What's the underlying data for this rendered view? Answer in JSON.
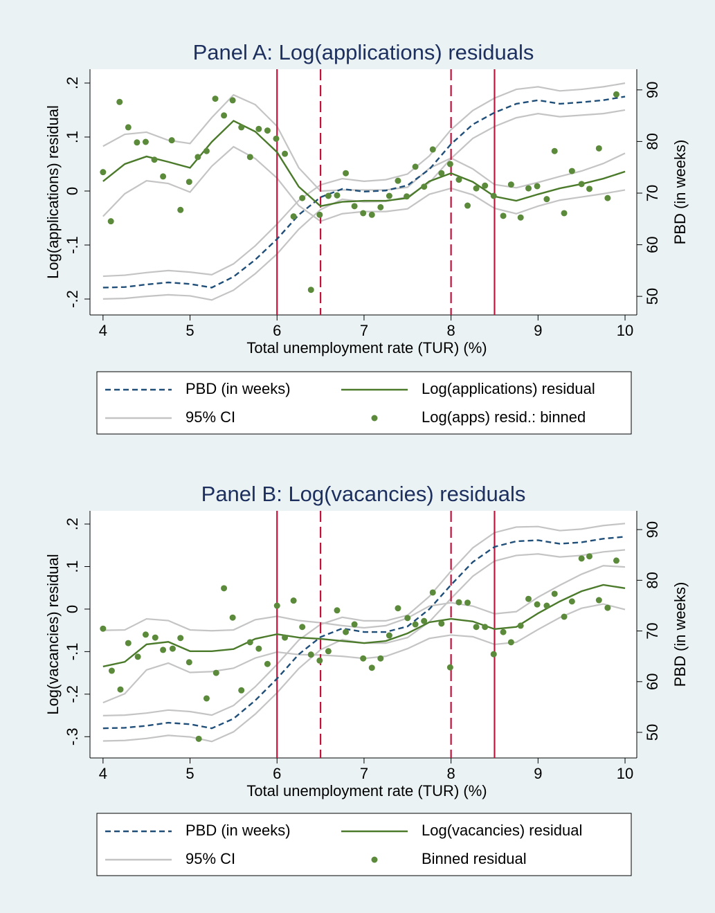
{
  "chart_data": [
    {
      "type": "line",
      "title": "Panel A: Log(applications) residuals",
      "xlabel": "Total unemployment rate (TUR) (%)",
      "ylabel": "Log(applications) residual",
      "y2label": "PBD (in weeks)",
      "xlim": [
        3.85,
        10.135
      ],
      "xticks": [
        4,
        5,
        6,
        7,
        8,
        9,
        10
      ],
      "ylim": [
        -0.2295,
        0.2256
      ],
      "yticks": [
        {
          "value": -0.2,
          "label": "-.2"
        },
        {
          "value": -0.1,
          "label": "-.1"
        },
        0,
        {
          "value": 0.1,
          "label": ".1"
        },
        {
          "value": 0.2,
          "label": ".2"
        }
      ],
      "y2lim": [
        46.4,
        94.0
      ],
      "y2ticks": [
        50,
        60,
        70,
        80,
        90
      ],
      "vline_color": "#c0143c",
      "vlines": [
        {
          "x": 6,
          "style": "solid"
        },
        {
          "x": 6.5,
          "style": "dash"
        },
        {
          "x": 8,
          "style": "dash"
        },
        {
          "x": 8.5,
          "style": "solid"
        }
      ],
      "x": [
        4,
        4.25,
        4.5,
        4.75,
        5,
        5.25,
        5.5,
        5.75,
        6,
        6.25,
        6.5,
        6.75,
        7,
        7.25,
        7.5,
        7.75,
        8,
        8.25,
        8.5,
        8.75,
        9,
        9.25,
        9.5,
        9.75,
        10
      ],
      "series": [
        {
          "name": "PBD (in weeks)",
          "color": "#1f4e79",
          "dash": true,
          "axis": "y2",
          "values": [
            51.7,
            51.8,
            52.3,
            52.7,
            52.4,
            51.7,
            53.8,
            57.1,
            61.1,
            65.8,
            69.2,
            70.8,
            70.3,
            70.5,
            71.5,
            74.6,
            79.5,
            83.3,
            85.6,
            87.3,
            88.0,
            87.3,
            87.6,
            88.0,
            88.7
          ]
        },
        {
          "name": "Log(applications) residual",
          "color": "#4a7a2a",
          "values": [
            0.018,
            0.05,
            0.064,
            0.054,
            0.043,
            0.091,
            0.13,
            0.11,
            0.072,
            0.008,
            -0.028,
            -0.02,
            -0.018,
            -0.018,
            -0.013,
            0.018,
            0.033,
            0.017,
            -0.01,
            -0.018,
            -0.006,
            0.005,
            0.013,
            0.023,
            0.036
          ]
        },
        {
          "name": "95% CI",
          "color": "#c4c4c4",
          "bands": [
            {
              "axis": "y2",
              "lower": [
                49.5,
                49.6,
                50.0,
                50.3,
                50.1,
                49.3,
                51.2,
                54.4,
                58.2,
                63.0,
                66.8,
                68.8,
                68.3,
                68.4,
                69.3,
                72.0,
                76.7,
                80.6,
                82.9,
                84.6,
                85.4,
                84.8,
                85.1,
                85.4,
                86.1
              ],
              "upper": [
                53.9,
                54.1,
                54.6,
                55.0,
                54.7,
                54.2,
                56.3,
                59.8,
                64.0,
                68.6,
                71.6,
                72.8,
                72.3,
                72.6,
                73.7,
                77.2,
                82.3,
                86.0,
                88.4,
                90.1,
                90.6,
                89.8,
                90.1,
                90.6,
                91.3
              ]
            },
            {
              "lower": [
                -0.047,
                -0.005,
                0.019,
                0.014,
                -0.002,
                0.046,
                0.082,
                0.06,
                0.024,
                -0.027,
                -0.056,
                -0.042,
                -0.038,
                -0.038,
                -0.033,
                -0.006,
                0.005,
                -0.007,
                -0.032,
                -0.042,
                -0.028,
                -0.017,
                -0.011,
                -0.005,
                0.002
              ],
              "upper": [
                0.083,
                0.105,
                0.109,
                0.094,
                0.088,
                0.136,
                0.178,
                0.16,
                0.12,
                0.043,
                0.0,
                0.002,
                0.002,
                0.002,
                0.007,
                0.042,
                0.061,
                0.041,
                0.012,
                0.006,
                0.016,
                0.027,
                0.037,
                0.051,
                0.07
              ]
            }
          ]
        },
        {
          "name": "Log(apps) resid.: binned",
          "color": "#5a8a3a",
          "marker": "dot",
          "x": [
            4.0,
            4.09,
            4.19,
            4.29,
            4.39,
            4.49,
            4.59,
            4.69,
            4.79,
            4.89,
            4.99,
            5.09,
            5.19,
            5.29,
            5.39,
            5.49,
            5.59,
            5.69,
            5.79,
            5.89,
            5.99,
            6.09,
            6.19,
            6.29,
            6.39,
            6.49,
            6.59,
            6.69,
            6.79,
            6.89,
            6.99,
            7.09,
            7.19,
            7.29,
            7.39,
            7.49,
            7.59,
            7.69,
            7.79,
            7.89,
            7.99,
            8.09,
            8.19,
            8.29,
            8.39,
            8.49,
            8.6,
            8.69,
            8.8,
            8.89,
            8.99,
            9.1,
            9.19,
            9.3,
            9.39,
            9.5,
            9.59,
            9.7,
            9.8,
            9.9
          ],
          "values": [
            0.035,
            -0.056,
            0.165,
            0.118,
            0.09,
            0.091,
            0.058,
            0.027,
            0.094,
            -0.035,
            0.017,
            0.063,
            0.074,
            0.171,
            0.14,
            0.168,
            0.118,
            0.063,
            0.115,
            0.112,
            0.097,
            0.069,
            -0.047,
            -0.013,
            -0.183,
            -0.044,
            -0.009,
            -0.008,
            0.033,
            -0.028,
            -0.041,
            -0.044,
            -0.03,
            -0.009,
            0.019,
            -0.01,
            0.045,
            0.008,
            0.077,
            0.033,
            0.05,
            0.021,
            -0.027,
            0.005,
            0.01,
            -0.009,
            -0.046,
            0.012,
            -0.049,
            0.005,
            0.009,
            -0.015,
            0.074,
            -0.041,
            0.037,
            0.013,
            0.004,
            0.079,
            -0.013,
            0.179
          ]
        }
      ]
    },
    {
      "type": "line",
      "title": "Panel B: Log(vacancies) residuals",
      "xlabel": "Total unemployment rate (TUR) (%)",
      "ylabel": "Log(vacancies) residual",
      "y2label": "PBD (in weeks)",
      "xlim": [
        3.85,
        10.135
      ],
      "xticks": [
        4,
        5,
        6,
        7,
        8,
        9,
        10
      ],
      "ylim": [
        -0.35,
        0.231
      ],
      "yticks": [
        {
          "value": -0.3,
          "label": "-.3"
        },
        {
          "value": -0.2,
          "label": "-.2"
        },
        {
          "value": -0.1,
          "label": "-.1"
        },
        0,
        {
          "value": 0.1,
          "label": ".1"
        },
        {
          "value": 0.2,
          "label": ".2"
        }
      ],
      "y2lim": [
        44.95,
        93.7
      ],
      "y2ticks": [
        50,
        60,
        70,
        80,
        90
      ],
      "vline_color": "#c0143c",
      "vlines": [
        {
          "x": 6,
          "style": "solid"
        },
        {
          "x": 6.5,
          "style": "dash"
        },
        {
          "x": 8,
          "style": "dash"
        },
        {
          "x": 8.5,
          "style": "solid"
        }
      ],
      "x": [
        4,
        4.25,
        4.5,
        4.75,
        5,
        5.25,
        5.5,
        5.75,
        6,
        6.25,
        6.5,
        6.75,
        7,
        7.25,
        7.5,
        7.75,
        8,
        8.25,
        8.5,
        8.75,
        9,
        9.25,
        9.5,
        9.75,
        10
      ],
      "series": [
        {
          "name": "PBD (in weeks)",
          "color": "#1f4e79",
          "dash": true,
          "axis": "y2",
          "values": [
            50.8,
            50.9,
            51.3,
            51.9,
            51.6,
            50.8,
            52.7,
            56.3,
            60.6,
            65.4,
            68.8,
            70.5,
            69.8,
            69.8,
            70.9,
            74.3,
            79.1,
            83.6,
            86.6,
            87.7,
            87.9,
            87.2,
            87.5,
            88.2,
            88.6
          ]
        },
        {
          "name": "Log(vacancies) residual",
          "color": "#4a7a2a",
          "values": [
            -0.135,
            -0.124,
            -0.083,
            -0.077,
            -0.099,
            -0.099,
            -0.094,
            -0.07,
            -0.059,
            -0.067,
            -0.07,
            -0.075,
            -0.08,
            -0.075,
            -0.057,
            -0.031,
            -0.023,
            -0.029,
            -0.047,
            -0.042,
            -0.01,
            0.018,
            0.042,
            0.057,
            0.049
          ]
        },
        {
          "name": "95% CI",
          "color": "#c4c4c4",
          "bands": [
            {
              "axis": "y2",
              "lower": [
                48.3,
                48.4,
                48.8,
                49.4,
                49.1,
                48.2,
                50.1,
                53.6,
                57.8,
                62.6,
                66.3,
                68.3,
                67.6,
                67.6,
                68.7,
                71.8,
                76.4,
                80.8,
                83.8,
                84.9,
                85.2,
                84.6,
                84.9,
                85.6,
                86.0
              ],
              "upper": [
                53.3,
                53.4,
                53.8,
                54.4,
                54.1,
                53.4,
                55.3,
                59.0,
                63.4,
                68.2,
                71.3,
                72.7,
                72.0,
                72.0,
                73.1,
                76.8,
                81.8,
                86.4,
                89.4,
                90.5,
                90.6,
                89.8,
                90.1,
                90.8,
                91.2
              ]
            },
            {
              "lower": [
                -0.22,
                -0.199,
                -0.143,
                -0.127,
                -0.149,
                -0.147,
                -0.139,
                -0.115,
                -0.101,
                -0.107,
                -0.108,
                -0.111,
                -0.116,
                -0.111,
                -0.093,
                -0.069,
                -0.061,
                -0.065,
                -0.083,
                -0.078,
                -0.048,
                -0.02,
                0.002,
                0.012,
                -0.001
              ],
              "upper": [
                -0.05,
                -0.049,
                -0.023,
                -0.027,
                -0.049,
                -0.051,
                -0.049,
                -0.025,
                -0.017,
                -0.027,
                -0.032,
                -0.039,
                -0.044,
                -0.039,
                -0.021,
                0.007,
                0.015,
                0.007,
                -0.011,
                -0.006,
                0.028,
                0.056,
                0.082,
                0.102,
                0.099
              ]
            }
          ]
        },
        {
          "name": "Binned residual",
          "color": "#5a8a3a",
          "marker": "dot",
          "x": [
            4.0,
            4.1,
            4.2,
            4.29,
            4.4,
            4.49,
            4.6,
            4.69,
            4.8,
            4.89,
            4.99,
            5.1,
            5.19,
            5.3,
            5.39,
            5.49,
            5.59,
            5.69,
            5.79,
            5.89,
            6.0,
            6.09,
            6.19,
            6.29,
            6.39,
            6.49,
            6.59,
            6.69,
            6.79,
            6.89,
            6.99,
            7.09,
            7.19,
            7.29,
            7.39,
            7.5,
            7.59,
            7.69,
            7.79,
            7.89,
            7.99,
            8.09,
            8.19,
            8.29,
            8.39,
            8.49,
            8.6,
            8.69,
            8.8,
            8.89,
            8.99,
            9.1,
            9.19,
            9.3,
            9.39,
            9.5,
            9.59,
            9.7,
            9.8,
            9.9
          ],
          "values": [
            -0.046,
            -0.145,
            -0.189,
            -0.08,
            -0.112,
            -0.06,
            -0.067,
            -0.096,
            -0.093,
            -0.068,
            -0.125,
            -0.305,
            -0.21,
            -0.15,
            0.049,
            -0.02,
            -0.191,
            -0.078,
            -0.093,
            -0.129,
            0.008,
            -0.067,
            0.02,
            -0.042,
            -0.107,
            -0.121,
            -0.099,
            -0.003,
            -0.054,
            -0.036,
            -0.116,
            -0.138,
            -0.116,
            -0.062,
            0.002,
            -0.021,
            -0.036,
            -0.028,
            0.039,
            -0.034,
            -0.137,
            0.016,
            0.015,
            -0.042,
            -0.042,
            -0.106,
            -0.054,
            -0.078,
            -0.039,
            0.024,
            0.011,
            0.008,
            0.036,
            -0.018,
            0.018,
            0.119,
            0.124,
            0.021,
            0.003,
            0.114
          ]
        }
      ]
    }
  ]
}
